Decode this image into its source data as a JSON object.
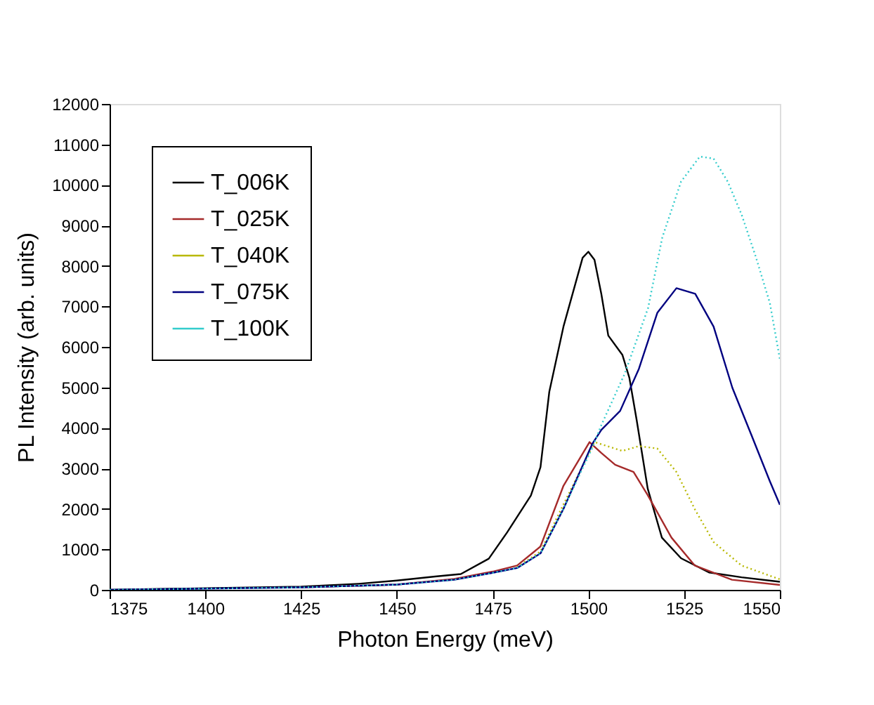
{
  "chart_data": {
    "type": "line",
    "xlabel": "Photon Energy (meV)",
    "ylabel": "PL Intensity (arb. units)",
    "xlim": [
      1375,
      1550
    ],
    "xticks": [
      1375,
      1400,
      1425,
      1450,
      1475,
      1500,
      1525,
      1550
    ],
    "ylim": [
      0,
      12000
    ],
    "yticks": [
      0,
      1000,
      2000,
      3000,
      4000,
      5000,
      6000,
      7000,
      8000,
      9000,
      10000,
      11000,
      12000
    ],
    "grid": false,
    "legend": "top left",
    "marker": "none",
    "series": [
      {
        "name": "T_006K",
        "color": "#000000",
        "line_style": "solid",
        "x": [
          1375,
          1400,
          1425,
          1440,
          1450,
          1460,
          1466.7,
          1474,
          1478.8,
          1485,
          1487.5,
          1489.8,
          1493.5,
          1498.5,
          1500,
          1501.6,
          1503.4,
          1505.2,
          1508.9,
          1510.7,
          1512.6,
          1515.5,
          1519.2,
          1524.2,
          1531.5,
          1540,
          1550
        ],
        "values": [
          0,
          40,
          80,
          150,
          230,
          330,
          390,
          770,
          1420,
          2330,
          3030,
          4890,
          6500,
          8200,
          8350,
          8150,
          7300,
          6280,
          5800,
          5240,
          4200,
          2500,
          1290,
          780,
          430,
          310,
          200
        ]
      },
      {
        "name": "T_025K",
        "color": "#a52a2a",
        "line_style": "solid",
        "x": [
          1425,
          1450,
          1465,
          1475,
          1481.4,
          1487.5,
          1493.5,
          1500.3,
          1503.4,
          1507,
          1511.8,
          1515.5,
          1521.7,
          1527.8,
          1537.5,
          1550
        ],
        "values": [
          60,
          130,
          270,
          450,
          600,
          1070,
          2570,
          3650,
          3380,
          3090,
          2910,
          2340,
          1290,
          600,
          250,
          120
        ]
      },
      {
        "name": "T_040K",
        "color": "#b8b800",
        "line_style": "dotted",
        "x": [
          1481.4,
          1487.5,
          1493.5,
          1501.6,
          1508.9,
          1513.2,
          1518,
          1523,
          1527.8,
          1532.7,
          1540,
          1550
        ],
        "values": [
          560,
          950,
          2110,
          3650,
          3430,
          3550,
          3490,
          2910,
          1990,
          1180,
          600,
          260
        ]
      },
      {
        "name": "T_075K",
        "color": "#000080",
        "line_style": "solid",
        "x": [
          1375,
          1400,
          1425,
          1450,
          1465,
          1475,
          1481.4,
          1487.5,
          1493.5,
          1501,
          1503.4,
          1508.3,
          1513.2,
          1518,
          1523,
          1527.9,
          1532.7,
          1537.6,
          1542.5,
          1547.4,
          1550
        ],
        "values": [
          0,
          30,
          60,
          130,
          250,
          420,
          540,
          900,
          2000,
          3600,
          3950,
          4420,
          5460,
          6840,
          7450,
          7310,
          6500,
          4990,
          3840,
          2680,
          2100
        ]
      },
      {
        "name": "T_100K",
        "color": "#33cccc",
        "line_style": "dotted",
        "x": [
          1375,
          1400,
          1425,
          1450,
          1465,
          1475,
          1481.4,
          1487.5,
          1493.5,
          1501,
          1503.4,
          1509.5,
          1515.6,
          1519.3,
          1524.2,
          1529.1,
          1532.7,
          1536.4,
          1540,
          1543.7,
          1547.4,
          1550
        ],
        "values": [
          0,
          30,
          60,
          130,
          250,
          420,
          540,
          900,
          2000,
          3500,
          4070,
          5340,
          6960,
          8700,
          10080,
          10700,
          10650,
          10080,
          9270,
          8230,
          7080,
          5700
        ]
      }
    ]
  }
}
